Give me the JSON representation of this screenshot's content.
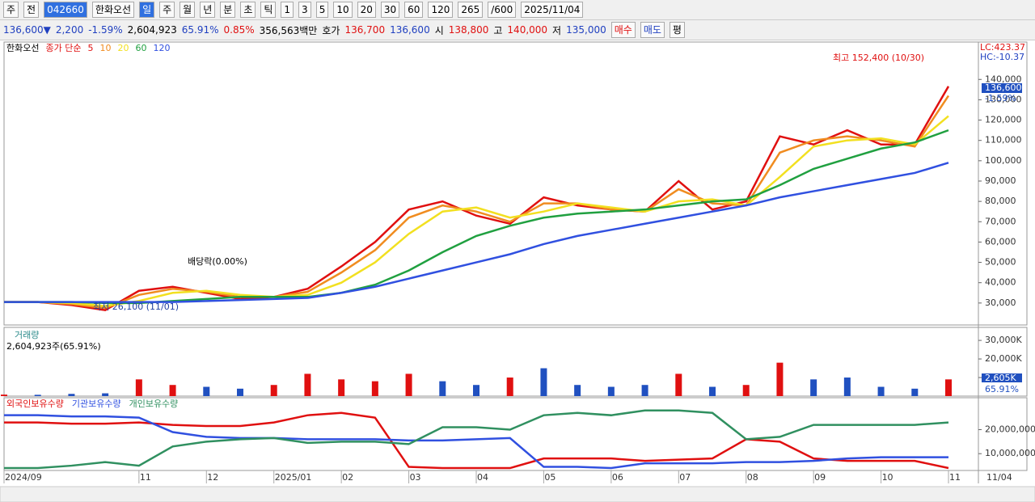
{
  "toolbar": {
    "row1": [
      "주",
      "전",
      "042660",
      "한화오선",
      "일",
      "주",
      "월",
      "년",
      "분",
      "초",
      "틱",
      "1",
      "3",
      "5",
      "10",
      "20",
      "30",
      "60",
      "120",
      "265",
      "/600",
      "2025/11/04"
    ],
    "row2": [
      "136,600▼",
      "2,200",
      "-1.59%",
      "2,604,923",
      "65.91%",
      "0.85%",
      "356,563백만",
      "호가",
      "136,700",
      "136,600",
      "시",
      "138,800",
      "고",
      "140,000",
      "저",
      "135,000",
      "매수",
      "매도",
      "평"
    ]
  },
  "chart_data": [
    {
      "type": "line",
      "legend": [
        "한화오선",
        "종가 단순"
      ],
      "categories": [
        "2024/09",
        null,
        null,
        null,
        "11",
        null,
        "12",
        null,
        "2025/01",
        null,
        "02",
        null,
        "03",
        null,
        "04",
        null,
        "05",
        null,
        "06",
        null,
        "07",
        null,
        "08",
        null,
        "09",
        null,
        "10",
        null,
        "11"
      ],
      "series": [
        {
          "name": "5",
          "color": "#e01010",
          "values": [
            30500,
            30500,
            29000,
            26500,
            36000,
            38000,
            35000,
            32000,
            33000,
            37000,
            48000,
            60000,
            76000,
            80000,
            73000,
            69000,
            82000,
            78000,
            76000,
            75000,
            90000,
            76000,
            80000,
            112000,
            108000,
            115000,
            108000,
            108000,
            136600
          ]
        },
        {
          "name": "10",
          "color": "#f08c20",
          "values": [
            30500,
            30500,
            29500,
            27500,
            34000,
            37000,
            35500,
            33000,
            33000,
            35500,
            45000,
            56000,
            72000,
            78000,
            75000,
            70000,
            79000,
            79000,
            76000,
            75000,
            86000,
            79000,
            78000,
            104000,
            110000,
            112000,
            110000,
            107000,
            132000
          ]
        },
        {
          "name": "20",
          "color": "#f2e020",
          "values": [
            30500,
            30500,
            30000,
            28500,
            31000,
            35000,
            36000,
            34000,
            33000,
            34000,
            40000,
            50000,
            64000,
            75000,
            77000,
            72000,
            75000,
            79000,
            77000,
            75000,
            80000,
            81000,
            78000,
            92000,
            107000,
            110000,
            111000,
            108000,
            122000
          ]
        },
        {
          "name": "60",
          "color": "#20a040",
          "values": [
            30500,
            30500,
            30500,
            30000,
            30000,
            31000,
            32000,
            33000,
            33000,
            33000,
            35000,
            39000,
            46000,
            55000,
            63000,
            68000,
            72000,
            74000,
            75000,
            76000,
            78000,
            80000,
            81000,
            88000,
            96000,
            101000,
            106000,
            109000,
            115000
          ]
        },
        {
          "name": "120",
          "color": "#3050e0",
          "values": [
            30500,
            30500,
            30500,
            30500,
            30500,
            30500,
            31000,
            31500,
            32000,
            32500,
            35000,
            38000,
            42000,
            46000,
            50000,
            54000,
            59000,
            63000,
            66000,
            69000,
            72000,
            75000,
            78000,
            82000,
            85000,
            88000,
            91000,
            94000,
            99000
          ]
        }
      ],
      "ylim": [
        19200,
        158400
      ],
      "yticks": [
        {
          "value": 30000,
          "label": "30,000"
        },
        {
          "value": 40000,
          "label": "40,000"
        },
        {
          "value": 50000,
          "label": "50,000"
        },
        {
          "value": 60000,
          "label": "60,000"
        },
        {
          "value": 70000,
          "label": "70,000"
        },
        {
          "value": 80000,
          "label": "80,000"
        },
        {
          "value": 90000,
          "label": "90,000"
        },
        {
          "value": 100000,
          "label": "100,000"
        },
        {
          "value": 110000,
          "label": "110,000"
        },
        {
          "value": 120000,
          "label": "120,000"
        },
        {
          "value": 130000,
          "label": "130,000"
        },
        {
          "value": 140000,
          "label": "140,000"
        }
      ],
      "annotations": [
        "최고 152,400 (10/30)",
        "최저 26,100 (11/01)",
        "배당락(0.00%)",
        "LC:423.37",
        "HC:-10.37",
        "136,600",
        "-1.59%"
      ]
    },
    {
      "type": "bar",
      "title": "거래량",
      "subtitle": "2,604,923주(65.91%)",
      "values": [
        800,
        700,
        1200,
        1500,
        9000,
        6000,
        5000,
        4000,
        6000,
        12000,
        9000,
        8000,
        12000,
        8000,
        6000,
        10000,
        15000,
        6000,
        5000,
        6000,
        12000,
        5000,
        6000,
        18000,
        9000,
        10000,
        5000,
        4000,
        9000
      ],
      "colors": [
        "#e01010",
        "#2050c0",
        "#2050c0",
        "#2050c0",
        "#e01010",
        "#e01010",
        "#2050c0",
        "#2050c0",
        "#e01010",
        "#e01010",
        "#e01010",
        "#e01010",
        "#e01010",
        "#2050c0",
        "#2050c0",
        "#e01010",
        "#2050c0",
        "#2050c0",
        "#2050c0",
        "#2050c0",
        "#e01010",
        "#2050c0",
        "#e01010",
        "#e01010",
        "#2050c0",
        "#2050c0",
        "#2050c0",
        "#2050c0",
        "#e01010"
      ],
      "ylim": [
        0,
        37000
      ],
      "yticks": [
        {
          "value": 10000,
          "label": "10,000K"
        },
        {
          "value": 20000,
          "label": "20,000K"
        },
        {
          "value": 30000,
          "label": "30,000K"
        }
      ],
      "annotations": [
        "2,605K",
        "65.91%"
      ]
    },
    {
      "type": "line",
      "series": [
        {
          "name": "외국인보유수량",
          "color": "#e01010",
          "values": [
            23000000,
            23000000,
            22500000,
            22500000,
            23000000,
            22000000,
            21500000,
            21500000,
            23000000,
            26000000,
            27000000,
            25000000,
            4500000,
            4000000,
            4000000,
            4000000,
            8000000,
            8000000,
            8000000,
            7000000,
            7500000,
            8000000,
            16000000,
            15000000,
            8000000,
            7000000,
            7000000,
            7000000,
            4000000
          ]
        },
        {
          "name": "기관보유수량",
          "color": "#3050e0",
          "values": [
            26000000,
            26000000,
            25500000,
            25500000,
            25000000,
            19000000,
            17000000,
            16500000,
            16500000,
            16000000,
            16000000,
            16000000,
            15500000,
            15500000,
            16000000,
            16500000,
            4500000,
            4500000,
            4000000,
            6000000,
            6000000,
            6000000,
            6500000,
            6500000,
            7000000,
            8000000,
            8500000,
            8500000,
            8500000
          ]
        },
        {
          "name": "개인보유수량",
          "color": "#309060",
          "values": [
            4000000,
            4000000,
            5000000,
            6500000,
            5000000,
            13000000,
            15000000,
            16000000,
            16500000,
            14500000,
            15000000,
            15000000,
            14000000,
            21000000,
            21000000,
            20000000,
            26000000,
            27000000,
            26000000,
            28000000,
            28000000,
            27000000,
            16000000,
            17000000,
            22000000,
            22000000,
            22000000,
            22000000,
            23000000
          ]
        }
      ],
      "ylim": [
        3000000,
        33300000
      ],
      "yticks": [
        {
          "value": 10000000,
          "label": "10,000,000"
        },
        {
          "value": 20000000,
          "label": "20,000,000"
        }
      ],
      "annotations": [
        "11/04"
      ]
    }
  ]
}
